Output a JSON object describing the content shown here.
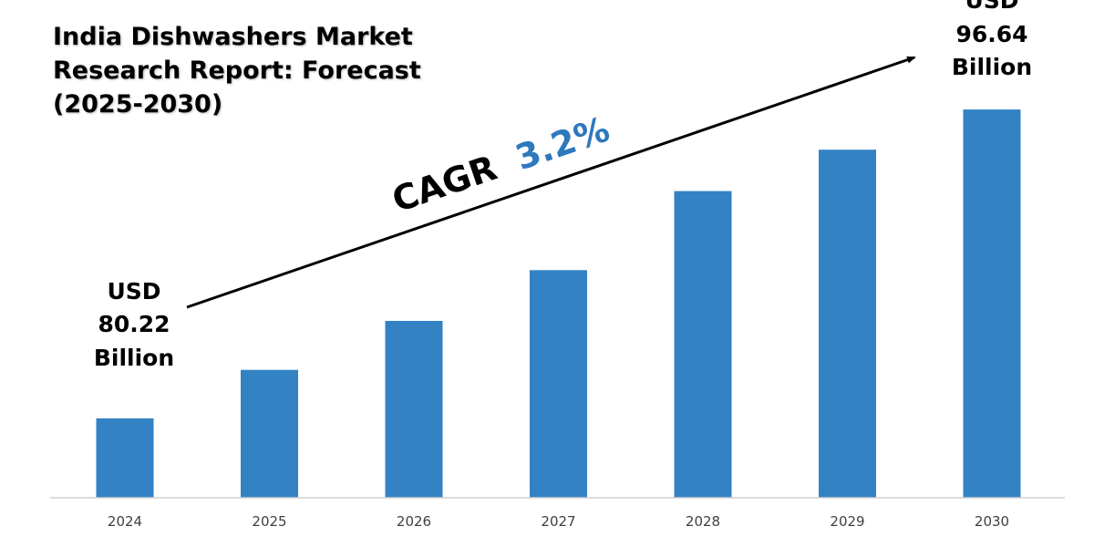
{
  "title": "India Dishwashers Market Research Report: Forecast (2025-2030)",
  "colors": {
    "bar": "#3282C4",
    "axis": "#D0D0D0",
    "cagr_value": "#2E78BD",
    "text": "#000000"
  },
  "annotations": {
    "cagr_label": "CAGR",
    "cagr_value": "3.2%",
    "start_label": [
      "USD",
      "80.22",
      "Billion"
    ],
    "end_label": [
      "USD",
      "96.64",
      "Billion"
    ]
  },
  "chart_data": {
    "type": "bar",
    "title": "India Dishwashers Market Research Report: Forecast (2025-2030)",
    "xlabel": "",
    "ylabel": "",
    "categories": [
      "2024",
      "2025",
      "2026",
      "2027",
      "2028",
      "2029",
      "2030"
    ],
    "values": [
      80.22,
      82.8,
      85.4,
      88.1,
      92.3,
      94.5,
      96.64
    ],
    "ylim": [
      76,
      98
    ],
    "grid": false,
    "legend": "none"
  }
}
